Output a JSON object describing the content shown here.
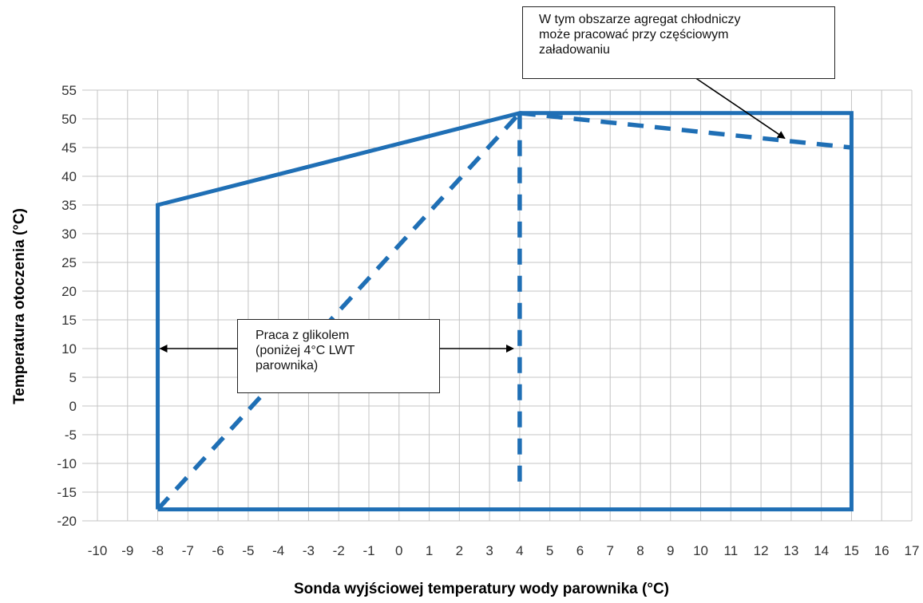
{
  "chart_data": {
    "type": "line",
    "xlabel": "Sonda wyjściowej temperatury wody parownika  (°C)",
    "ylabel": "Temperatura otoczenia (°C)",
    "xlim": [
      -10,
      17
    ],
    "ylim": [
      -20,
      55
    ],
    "x_ticks": [
      -10,
      -9,
      -8,
      -7,
      -6,
      -5,
      -4,
      -3,
      -2,
      -1,
      0,
      1,
      2,
      3,
      4,
      5,
      6,
      7,
      8,
      9,
      10,
      11,
      12,
      13,
      14,
      15,
      16,
      17
    ],
    "y_ticks": [
      55,
      50,
      45,
      40,
      35,
      30,
      25,
      20,
      15,
      10,
      5,
      0,
      -5,
      -10,
      -15,
      -20
    ],
    "grid": true,
    "line_color": "#1f6fb5",
    "series": [
      {
        "style": "solid",
        "points": [
          [
            -8,
            -18
          ],
          [
            -8,
            35
          ],
          [
            4,
            51
          ],
          [
            15,
            51
          ],
          [
            15,
            -18
          ],
          [
            -8,
            -18
          ]
        ]
      },
      {
        "style": "dashed",
        "points": [
          [
            -8,
            -18
          ],
          [
            4,
            51
          ]
        ]
      },
      {
        "style": "dashed",
        "points": [
          [
            4,
            51
          ],
          [
            4,
            -15
          ]
        ]
      },
      {
        "style": "dashed",
        "points": [
          [
            4,
            51
          ],
          [
            15,
            45
          ]
        ]
      }
    ],
    "annotations": [
      {
        "id": "partial-load-note",
        "lines": [
          "W  tym  obszarze  agregat  chłodniczy",
          "może  pracować  przy  częściowym",
          "załadowaniu"
        ],
        "arrow_to": [
          13,
          48
        ]
      },
      {
        "id": "glycol-note",
        "lines": [
          "Praca z glikolem",
          "(poniżej  4°C  LWT",
          "parownika)"
        ],
        "arrows_to": [
          [
            -8,
            10
          ],
          [
            4,
            10
          ]
        ]
      }
    ]
  }
}
